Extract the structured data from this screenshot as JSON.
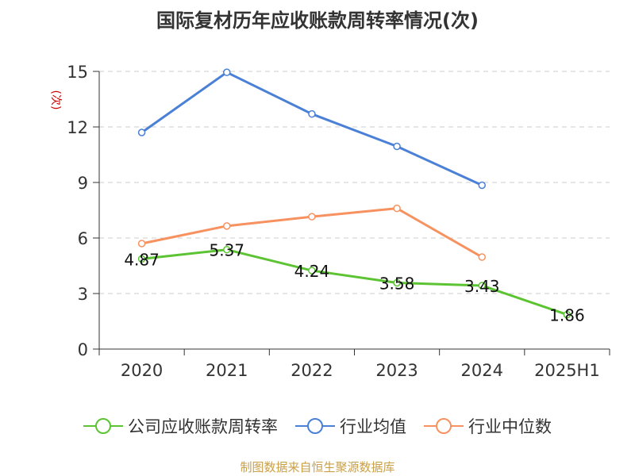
{
  "chart_data": {
    "type": "line",
    "title": "国际复材历年应收账款周转率情况(次)",
    "ylabel": "(次)",
    "categories": [
      "2020",
      "2021",
      "2022",
      "2023",
      "2024",
      "2025H1"
    ],
    "ylim": [
      0,
      15
    ],
    "yticks": [
      0,
      3,
      6,
      9,
      12,
      15
    ],
    "grid": true,
    "legend_position": "bottom",
    "series": [
      {
        "name": "公司应收账款周转率",
        "color": "#5cc433",
        "values": [
          4.87,
          5.37,
          4.24,
          3.58,
          3.43,
          1.86
        ],
        "labels": [
          "4.87",
          "5.37",
          "4.24",
          "3.58",
          "3.43",
          "1.86"
        ]
      },
      {
        "name": "行业均值",
        "color": "#4a80d6",
        "values": [
          11.7,
          14.95,
          12.7,
          10.95,
          8.85,
          null
        ]
      },
      {
        "name": "行业中位数",
        "color": "#f79260",
        "values": [
          5.7,
          6.65,
          7.15,
          7.6,
          4.97,
          null
        ]
      }
    ]
  },
  "source": "制图数据来自恒生聚源数据库"
}
